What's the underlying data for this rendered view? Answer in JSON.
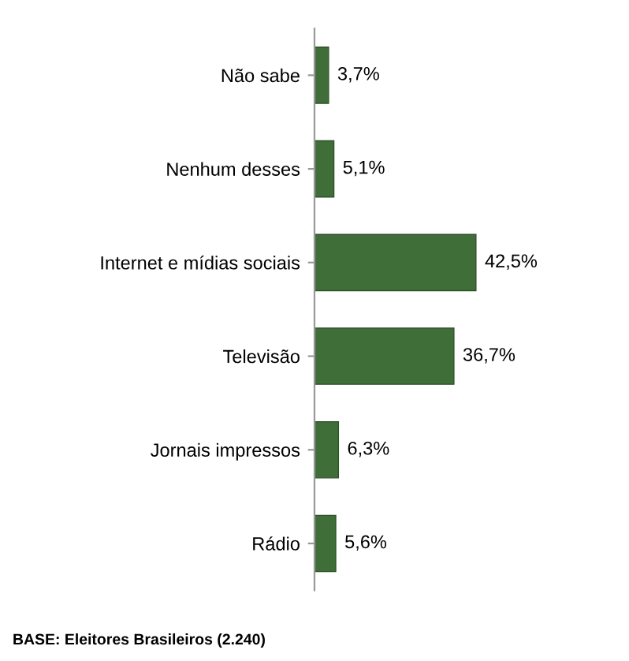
{
  "chart_data": {
    "type": "bar",
    "orientation": "horizontal",
    "categories": [
      "Não sabe",
      "Nenhum desses",
      "Internet e mídias sociais",
      "Televisão",
      "Jornais impressos",
      "Rádio"
    ],
    "values": [
      3.7,
      5.1,
      42.5,
      36.7,
      6.3,
      5.6
    ],
    "value_labels": [
      "3,7%",
      "5,1%",
      "42,5%",
      "36,7%",
      "6,3%",
      "5,6%"
    ],
    "color": "#3f6e38",
    "annotations": [
      "BASE: Eleitores Brasileiros (2.240)"
    ],
    "grid": false,
    "legend": false
  }
}
